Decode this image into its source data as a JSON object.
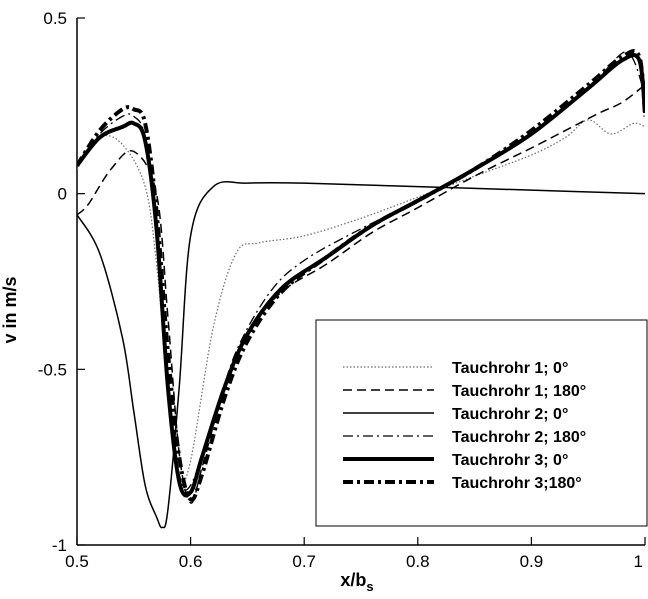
{
  "chart_data": {
    "type": "line",
    "title": "",
    "xlabel": "x/b",
    "xlabel_subscript": "s",
    "ylabel": "v in m/s",
    "xlim": [
      0.5,
      1.0
    ],
    "ylim": [
      -1.0,
      0.5
    ],
    "xticks": [
      0.5,
      0.6,
      0.7,
      0.8,
      0.9,
      1.0
    ],
    "xtick_labels": [
      "0.5",
      "0.6",
      "0.7",
      "0.8",
      "0.9",
      "1"
    ],
    "yticks": [
      -1.0,
      -0.5,
      0.0,
      0.5
    ],
    "ytick_labels": [
      "-1",
      "-0.5",
      "0",
      "0.5"
    ],
    "grid": false,
    "legend_position": "bottom-right",
    "series": [
      {
        "name": "Tauchrohr 1; 0°",
        "style": "dotted",
        "color": "#555555",
        "x": [
          0.5,
          0.52,
          0.54,
          0.56,
          0.57,
          0.58,
          0.59,
          0.6,
          0.62,
          0.64,
          0.66,
          0.7,
          0.75,
          0.8,
          0.85,
          0.9,
          0.93,
          0.95,
          0.97,
          0.99,
          1.0
        ],
        "y": [
          0.07,
          0.16,
          0.14,
          0.02,
          -0.2,
          -0.55,
          -0.8,
          -0.76,
          -0.38,
          -0.17,
          -0.14,
          -0.12,
          -0.07,
          -0.01,
          0.05,
          0.11,
          0.16,
          0.21,
          0.17,
          0.2,
          0.19
        ]
      },
      {
        "name": "Tauchrohr 1; 180°",
        "style": "dashed",
        "color": "#000000",
        "x": [
          0.5,
          0.51,
          0.53,
          0.55,
          0.57,
          0.58,
          0.59,
          0.6,
          0.61,
          0.63,
          0.65,
          0.68,
          0.72,
          0.76,
          0.8,
          0.85,
          0.9,
          0.93,
          0.96,
          0.98,
          1.0
        ],
        "y": [
          -0.06,
          -0.03,
          0.07,
          0.12,
          0.0,
          -0.35,
          -0.74,
          -0.88,
          -0.78,
          -0.55,
          -0.4,
          -0.28,
          -0.2,
          -0.11,
          -0.04,
          0.05,
          0.13,
          0.18,
          0.23,
          0.26,
          0.31
        ]
      },
      {
        "name": "Tauchrohr 2; 0°",
        "style": "solid",
        "color": "#000000",
        "x": [
          0.5,
          0.52,
          0.54,
          0.55,
          0.56,
          0.57,
          0.575,
          0.58,
          0.59,
          0.6,
          0.62,
          0.65,
          0.7,
          0.8,
          0.9,
          1.0
        ],
        "y": [
          -0.06,
          -0.17,
          -0.41,
          -0.62,
          -0.83,
          -0.92,
          -0.95,
          -0.9,
          -0.55,
          -0.12,
          0.02,
          0.03,
          0.03,
          0.02,
          0.01,
          0.0
        ]
      },
      {
        "name": "Tauchrohr 2; 180°",
        "style": "dashdot",
        "color": "#000000",
        "x": [
          0.5,
          0.52,
          0.54,
          0.55,
          0.56,
          0.57,
          0.58,
          0.59,
          0.6,
          0.62,
          0.64,
          0.67,
          0.7,
          0.75,
          0.8,
          0.85,
          0.9,
          0.95,
          0.98,
          0.99,
          1.0
        ],
        "y": [
          0.08,
          0.17,
          0.22,
          0.22,
          0.16,
          -0.1,
          -0.55,
          -0.8,
          -0.83,
          -0.65,
          -0.45,
          -0.28,
          -0.19,
          -0.1,
          -0.02,
          0.07,
          0.17,
          0.3,
          0.4,
          0.38,
          0.28
        ]
      },
      {
        "name": "Tauchrohr 3; 0°",
        "style": "thick-solid",
        "color": "#000000",
        "x": [
          0.5,
          0.52,
          0.54,
          0.55,
          0.56,
          0.57,
          0.58,
          0.59,
          0.6,
          0.61,
          0.63,
          0.65,
          0.68,
          0.72,
          0.76,
          0.8,
          0.85,
          0.9,
          0.95,
          0.98,
          0.995,
          1.0
        ],
        "y": [
          0.08,
          0.16,
          0.19,
          0.2,
          0.15,
          -0.1,
          -0.55,
          -0.82,
          -0.85,
          -0.75,
          -0.55,
          -0.4,
          -0.27,
          -0.18,
          -0.09,
          -0.02,
          0.07,
          0.17,
          0.3,
          0.38,
          0.38,
          0.23
        ]
      },
      {
        "name": "Tauchrohr 3;180°",
        "style": "thick-dashdot",
        "color": "#000000",
        "x": [
          0.5,
          0.52,
          0.54,
          0.55,
          0.56,
          0.57,
          0.58,
          0.59,
          0.6,
          0.61,
          0.63,
          0.65,
          0.68,
          0.72,
          0.76,
          0.8,
          0.85,
          0.9,
          0.95,
          0.98,
          0.995,
          1.0
        ],
        "y": [
          0.08,
          0.18,
          0.24,
          0.24,
          0.2,
          -0.05,
          -0.45,
          -0.75,
          -0.87,
          -0.8,
          -0.58,
          -0.42,
          -0.28,
          -0.18,
          -0.09,
          -0.02,
          0.07,
          0.18,
          0.31,
          0.39,
          0.39,
          0.22
        ]
      }
    ]
  }
}
